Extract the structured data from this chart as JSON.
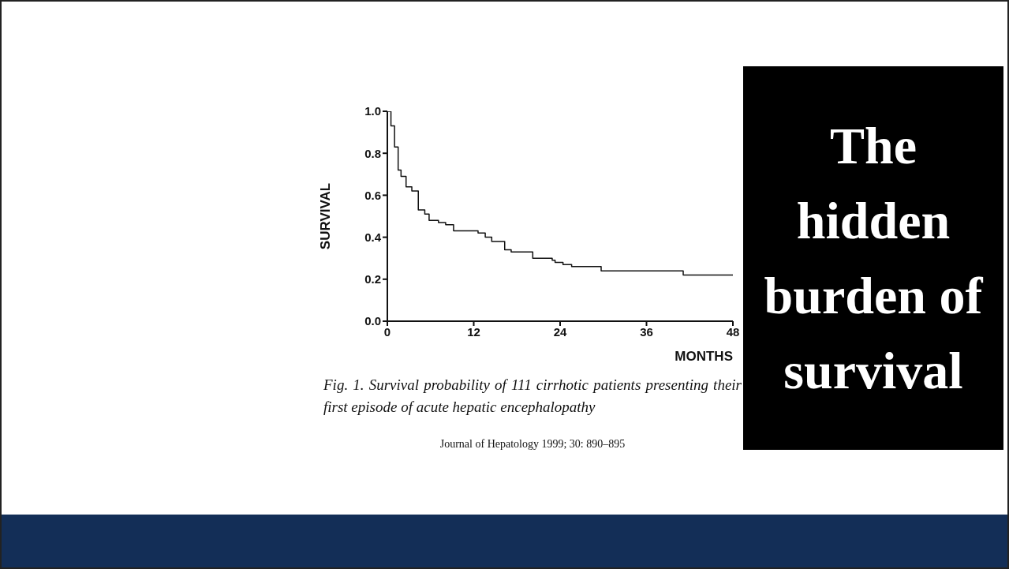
{
  "chart_data": {
    "type": "step",
    "title": "The hidden burden of survival",
    "xlabel": "MONTHS",
    "ylabel": "SURVIVAL",
    "annotations": [
      "Fig. 1. Survival probability of 111 cirrhotic patients presenting their first episode of acute hepatic encephalopathy",
      "Journal of Hepatology 1999; 30: 890–895"
    ],
    "x": [
      0,
      0.5,
      1,
      1.5,
      1.9,
      2.6,
      3.4,
      4.3,
      5.2,
      5.8,
      7.1,
      8.1,
      9.2,
      12.6,
      13.6,
      14.5,
      16.3,
      17.2,
      20.2,
      22.9,
      23.3,
      24.4,
      25.6,
      29.7,
      41.1,
      48
    ],
    "values": [
      1.0,
      0.93,
      0.83,
      0.72,
      0.69,
      0.64,
      0.62,
      0.53,
      0.51,
      0.48,
      0.47,
      0.46,
      0.43,
      0.42,
      0.4,
      0.38,
      0.34,
      0.33,
      0.3,
      0.29,
      0.28,
      0.27,
      0.26,
      0.24,
      0.22,
      0.22
    ],
    "color": "#111111",
    "xlim": [
      0,
      48
    ],
    "xticks": [
      0,
      12,
      24,
      36,
      48
    ],
    "ylim": [
      0,
      1
    ],
    "yticks": [
      {
        "value": 0,
        "label": "0.0"
      },
      {
        "value": 0.2,
        "label": "0.2"
      },
      {
        "value": 0.4,
        "label": "0.4"
      },
      {
        "value": 0.6,
        "label": "0.6"
      },
      {
        "value": 0.8,
        "label": "0.8"
      },
      {
        "value": 1,
        "label": "1.0"
      }
    ],
    "grid": false,
    "legend": false,
    "marker": "none",
    "line_style": "solid"
  }
}
